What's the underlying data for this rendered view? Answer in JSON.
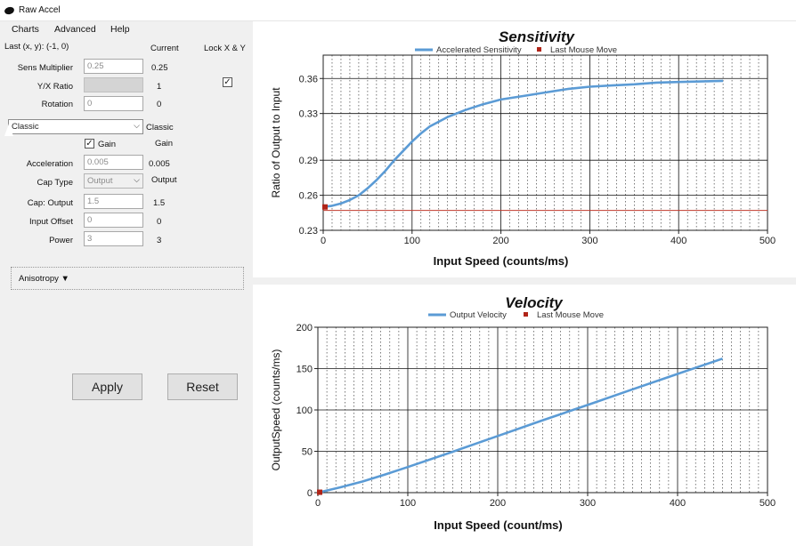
{
  "window": {
    "title": "Raw Accel"
  },
  "menu": [
    "Charts",
    "Advanced",
    "Help"
  ],
  "header": {
    "last_xy": "Last (x, y): (-1, 0)",
    "current": "Current",
    "lock": "Lock X & Y"
  },
  "fields": {
    "sens_multiplier": {
      "label": "Sens Multiplier",
      "value": "0.25",
      "current": "0.25"
    },
    "yx_ratio": {
      "label": "Y/X Ratio",
      "value": "",
      "current": "1"
    },
    "rotation": {
      "label": "Rotation",
      "value": "0",
      "current": "0"
    },
    "mode": {
      "value": "Classic",
      "current": "Classic"
    },
    "gain": {
      "label": "Gain",
      "current": "Gain"
    },
    "acceleration": {
      "label": "Acceleration",
      "value": "0.005",
      "current": "0.005"
    },
    "cap_type": {
      "label": "Cap Type",
      "value": "Output",
      "current": "Output"
    },
    "cap_output": {
      "label": "Cap: Output",
      "value": "1.5",
      "current": "1.5"
    },
    "input_offset": {
      "label": "Input Offset",
      "value": "0",
      "current": "0"
    },
    "power": {
      "label": "Power",
      "value": "3",
      "current": "3"
    }
  },
  "anisotropy": "Anisotropy ▼",
  "buttons": {
    "apply": "Apply",
    "reset": "Reset"
  },
  "chart_data": [
    {
      "type": "line",
      "title": "Sensitivity",
      "xlabel": "Input Speed (counts/ms)",
      "ylabel": "Ratio of Output to Input",
      "xlim": [
        0,
        500
      ],
      "ylim": [
        0.23,
        0.38
      ],
      "xticks": [
        0,
        100,
        200,
        300,
        400,
        500
      ],
      "yticks": [
        0.23,
        0.26,
        0.29,
        0.33,
        0.36
      ],
      "legend": [
        "Accelerated Sensitivity",
        "Last Mouse Move"
      ],
      "series": [
        {
          "name": "Accelerated Sensitivity",
          "color": "#5b9bd5",
          "x": [
            0,
            10,
            20,
            30,
            40,
            50,
            60,
            70,
            80,
            90,
            100,
            110,
            120,
            140,
            160,
            180,
            200,
            225,
            250,
            275,
            300,
            325,
            350,
            375,
            400,
            425,
            450
          ],
          "y": [
            0.25,
            0.251,
            0.253,
            0.256,
            0.26,
            0.266,
            0.273,
            0.281,
            0.29,
            0.298,
            0.306,
            0.313,
            0.319,
            0.327,
            0.333,
            0.338,
            0.342,
            0.345,
            0.348,
            0.351,
            0.353,
            0.354,
            0.355,
            0.3565,
            0.357,
            0.3575,
            0.358
          ]
        },
        {
          "name": "Last Mouse Move",
          "color": "#b02418",
          "x": [
            2
          ],
          "y": [
            0.25
          ]
        }
      ],
      "reference_line": {
        "y": 0.247,
        "color": "#c0392b"
      }
    },
    {
      "type": "line",
      "title": "Velocity",
      "xlabel": "Input Speed (count/ms)",
      "ylabel": "OutputSpeed (counts/ms)",
      "xlim": [
        0,
        500
      ],
      "ylim": [
        0,
        200
      ],
      "xticks": [
        0,
        100,
        200,
        300,
        400,
        500
      ],
      "yticks": [
        0,
        50,
        100,
        150,
        200
      ],
      "legend": [
        "Output Velocity",
        "Last Mouse Move"
      ],
      "series": [
        {
          "name": "Output Velocity",
          "color": "#5b9bd5",
          "x": [
            0,
            25,
            50,
            75,
            100,
            150,
            200,
            250,
            300,
            350,
            400,
            450
          ],
          "y": [
            0,
            6.5,
            13.5,
            22,
            31,
            49.5,
            68.5,
            87.5,
            106,
            125,
            143.5,
            162
          ]
        },
        {
          "name": "Last Mouse Move",
          "color": "#b02418",
          "x": [
            2
          ],
          "y": [
            0.5
          ]
        }
      ]
    }
  ]
}
